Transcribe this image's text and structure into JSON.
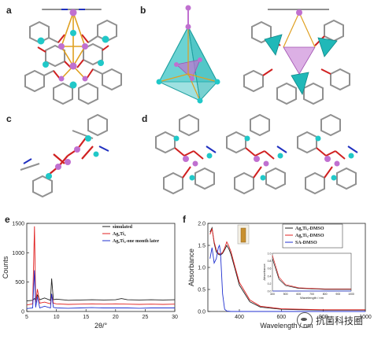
{
  "panels": {
    "a": "a",
    "b": "b",
    "c": "c",
    "d": "d",
    "e": "e",
    "f": "f"
  },
  "watermark": {
    "text": "抗菌科技圈",
    "icon": "wechat-icon"
  },
  "colors": {
    "ag": "#20c8c8",
    "ti": "#c070d0",
    "o": "#d02020",
    "n": "#2030c0",
    "c": "#909090",
    "au": "#e0a020",
    "black_series": "#222222",
    "red_series": "#e02020",
    "blue_series": "#2030d0"
  },
  "chart_data": [
    {
      "type": "line",
      "panel": "e",
      "xlabel": "2θ/°",
      "ylabel": "Counts",
      "xlim": [
        5,
        30
      ],
      "ylim": [
        0,
        1500
      ],
      "xticks": [
        5,
        10,
        15,
        20,
        25,
        30
      ],
      "yticks": [
        0,
        500,
        1000,
        1500
      ],
      "legend_position": "top-right",
      "series": [
        {
          "name": "simulated",
          "color": "#222222",
          "x": [
            5,
            6,
            6.3,
            6.5,
            6.8,
            7.2,
            8,
            9,
            9.2,
            9.5,
            10,
            12,
            14,
            16,
            18,
            20,
            21,
            22,
            24,
            26,
            28,
            30
          ],
          "y": [
            180,
            190,
            220,
            190,
            280,
            200,
            230,
            190,
            560,
            200,
            210,
            190,
            195,
            200,
            195,
            200,
            220,
            200,
            195,
            200,
            195,
            200
          ]
        },
        {
          "name": "Ag₆Ti₄",
          "color": "#e02020",
          "x": [
            5,
            6,
            6.3,
            6.5,
            6.8,
            7.2,
            8,
            9,
            9.2,
            9.5,
            10,
            12,
            14,
            16,
            18,
            20,
            22,
            24,
            26,
            28,
            30
          ],
          "y": [
            110,
            130,
            1450,
            150,
            380,
            140,
            160,
            130,
            300,
            140,
            130,
            120,
            125,
            130,
            125,
            130,
            125,
            120,
            125,
            120,
            125
          ]
        },
        {
          "name": "Ag₆Ti₄-one month later",
          "color": "#2030d0",
          "x": [
            5,
            6,
            6.3,
            6.5,
            6.8,
            7.2,
            8,
            9,
            9.2,
            9.5,
            10,
            12,
            14,
            16,
            18,
            20,
            22,
            24,
            26,
            28,
            30
          ],
          "y": [
            50,
            60,
            700,
            70,
            250,
            60,
            90,
            60,
            300,
            70,
            60,
            55,
            60,
            65,
            60,
            60,
            60,
            55,
            60,
            60,
            60
          ]
        }
      ]
    },
    {
      "type": "line",
      "panel": "f",
      "xlabel": "Wavelength / nm",
      "ylabel": "Absorbance",
      "xlim": [
        250,
        1000
      ],
      "ylim": [
        0,
        2.0
      ],
      "xticks": [
        400,
        600,
        800,
        1000
      ],
      "yticks": [
        0.0,
        0.5,
        1.0,
        1.5,
        2.0
      ],
      "legend_position": "top-right",
      "series": [
        {
          "name": "Ag₆Ti₄-DMSO",
          "color": "#222222",
          "x": [
            260,
            270,
            280,
            290,
            300,
            310,
            320,
            330,
            340,
            350,
            360,
            380,
            400,
            450,
            500,
            600,
            700,
            800,
            900,
            1000
          ],
          "y": [
            1.8,
            1.9,
            1.55,
            1.35,
            1.3,
            1.28,
            1.32,
            1.4,
            1.5,
            1.42,
            1.3,
            0.95,
            0.6,
            0.22,
            0.1,
            0.05,
            0.04,
            0.03,
            0.03,
            0.03
          ]
        },
        {
          "name": "Ag₆Ti₄-DMSO",
          "color": "#e02020",
          "x": [
            260,
            270,
            280,
            290,
            300,
            310,
            320,
            330,
            340,
            350,
            360,
            380,
            400,
            450,
            500,
            600,
            700,
            800,
            900,
            1000
          ],
          "y": [
            1.75,
            1.88,
            1.58,
            1.4,
            1.32,
            1.3,
            1.34,
            1.44,
            1.58,
            1.48,
            1.36,
            1.0,
            0.66,
            0.26,
            0.12,
            0.06,
            0.05,
            0.04,
            0.04,
            0.04
          ]
        },
        {
          "name": "SA-DMSO",
          "color": "#2030d0",
          "x": [
            260,
            270,
            280,
            290,
            300,
            305,
            310,
            315,
            320,
            330,
            340,
            360,
            400,
            500,
            600,
            800,
            1000
          ],
          "y": [
            1.2,
            1.45,
            1.1,
            1.2,
            1.45,
            1.5,
            1.35,
            0.9,
            0.4,
            0.05,
            0.01,
            0.0,
            0.0,
            0.0,
            0.0,
            0.0,
            0.0
          ]
        }
      ],
      "inset": {
        "xlabel": "Wavelength / nm",
        "ylabel": "Absorbance",
        "xlim": [
          400,
          1000
        ],
        "xticks": [
          400,
          500,
          600,
          700,
          800,
          900,
          1000
        ],
        "yticks": [
          0.0,
          0.2,
          0.4,
          0.6,
          0.8,
          1.0
        ]
      }
    }
  ]
}
